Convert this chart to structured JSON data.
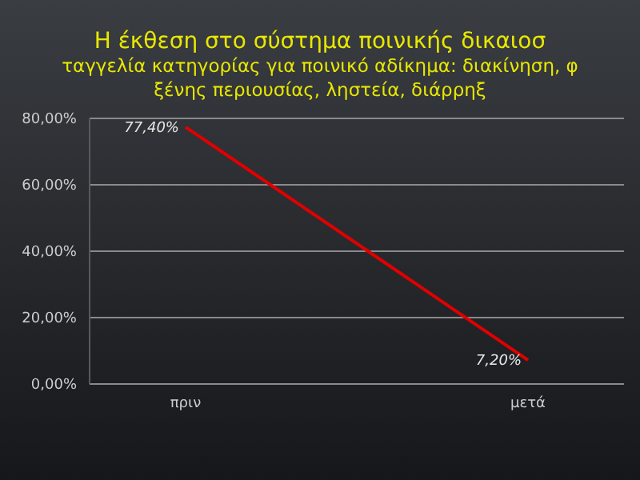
{
  "chart_data": {
    "type": "line",
    "title": "Η έκθεση στο σύστημα ποινικής δικαιοσ",
    "subtitle": "ταγγελία κατηγορίας για ποινικό αδίκημα: διακίνηση, φ\nξένης περιουσίας, ληστεία, διάρρηξ",
    "categories": [
      "πριν",
      "μετά"
    ],
    "series": [
      {
        "color": "#e00000",
        "values": [
          77.4,
          7.2
        ],
        "value_labels": [
          "77,40%",
          "7,20%"
        ]
      }
    ],
    "ylim": [
      0,
      80
    ],
    "yticks": [
      {
        "value": 0,
        "label": "0,00%"
      },
      {
        "value": 20,
        "label": "20,00%"
      },
      {
        "value": 40,
        "label": "40,00%"
      },
      {
        "value": 60,
        "label": "60,00%"
      },
      {
        "value": 80,
        "label": "80,00%"
      }
    ],
    "grid": "y",
    "marker": "none",
    "line_style": "solid"
  }
}
